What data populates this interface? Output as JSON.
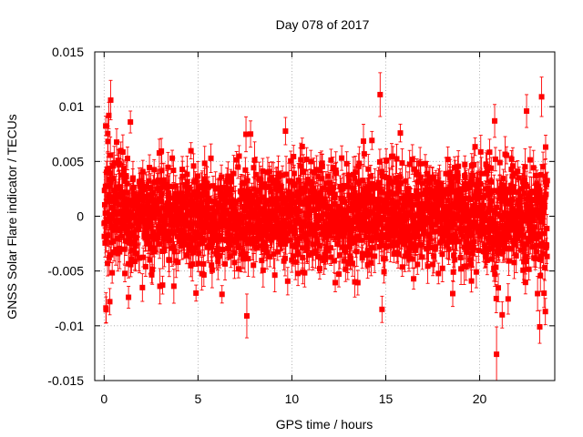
{
  "chart_data": {
    "type": "scatter",
    "title": "Day 078 of 2017",
    "xlabel": "GPS time / hours",
    "ylabel": "GNSS Solar Flare indicator / TECUs",
    "xlim": [
      -0.5,
      24.0
    ],
    "ylim": [
      -0.015,
      0.015
    ],
    "x_ticks": [
      0,
      5,
      10,
      15,
      20
    ],
    "x_tick_labels": [
      "0",
      "5",
      "10",
      "15",
      "20"
    ],
    "y_ticks": [
      -0.015,
      -0.01,
      -0.005,
      0,
      0.005,
      0.01,
      0.015
    ],
    "y_tick_labels": [
      "-0.015",
      "-0.01",
      "-0.005",
      "0",
      "0.005",
      "0.01",
      "0.015"
    ],
    "grid": true,
    "marker": "filled-square",
    "error_bars": true,
    "series_color": "#ff0000",
    "x_range_hours": [
      0,
      23.6
    ],
    "typical_spread": 0.0022,
    "typical_error": 0.0012,
    "outliers": [
      {
        "x": 0.25,
        "y": 0.0092,
        "err": 0.0012
      },
      {
        "x": 0.35,
        "y": 0.0106,
        "err": 0.0018
      },
      {
        "x": 0.3,
        "y": -0.0078,
        "err": 0.0012
      },
      {
        "x": 1.4,
        "y": 0.0086,
        "err": 0.001
      },
      {
        "x": 1.3,
        "y": -0.0074,
        "err": 0.001
      },
      {
        "x": 7.6,
        "y": -0.0091,
        "err": 0.002
      },
      {
        "x": 7.8,
        "y": 0.0075,
        "err": 0.0012
      },
      {
        "x": 14.7,
        "y": 0.0111,
        "err": 0.002
      },
      {
        "x": 14.8,
        "y": -0.0085,
        "err": 0.0012
      },
      {
        "x": 20.9,
        "y": -0.0126,
        "err": 0.0025
      },
      {
        "x": 21.2,
        "y": -0.009,
        "err": 0.0012
      },
      {
        "x": 20.8,
        "y": 0.0087,
        "err": 0.0015
      },
      {
        "x": 22.5,
        "y": 0.0096,
        "err": 0.0015
      },
      {
        "x": 23.3,
        "y": 0.0109,
        "err": 0.0018
      },
      {
        "x": 23.2,
        "y": -0.0101,
        "err": 0.0015
      },
      {
        "x": 23.5,
        "y": -0.0087,
        "err": 0.0012
      }
    ]
  }
}
